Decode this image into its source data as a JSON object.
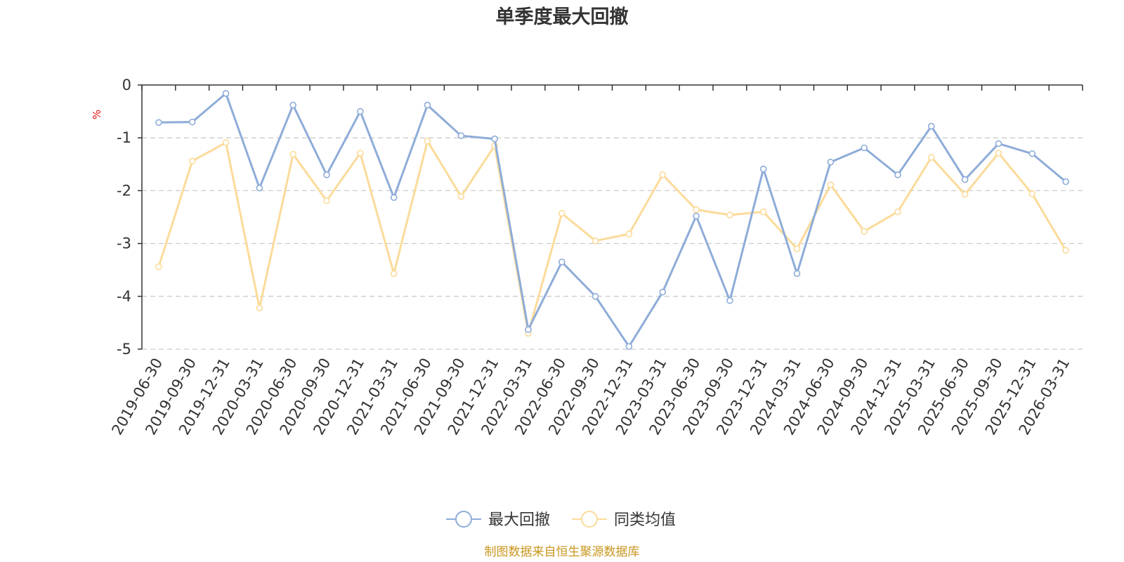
{
  "chart_data": {
    "type": "line",
    "title": "单季度最大回撤",
    "unit": "%",
    "ylim": [
      -5,
      0
    ],
    "yticks": [
      0,
      -1,
      -2,
      -3,
      -4,
      -5
    ],
    "grid": true,
    "legend_position": "bottom-center",
    "categories": [
      "2019-06-30",
      "2019-09-30",
      "2019-12-31",
      "2020-03-31",
      "2020-06-30",
      "2020-09-30",
      "2020-12-31",
      "2021-03-31",
      "2021-06-30",
      "2021-09-30",
      "2021-12-31",
      "2022-03-31",
      "2022-06-30",
      "2022-09-30",
      "2022-12-31",
      "2023-03-31",
      "2023-06-30",
      "2023-09-30",
      "2023-12-31",
      "2024-03-31",
      "2024-06-30",
      "2024-09-30",
      "2024-12-31",
      "2025-03-31",
      "2025-06-30",
      "2025-09-30",
      "2025-12-31",
      "2026-03-31"
    ],
    "series": [
      {
        "name": "最大回撤",
        "color": "#8eacd8",
        "values": [
          -0.71,
          -0.7,
          -0.16,
          -1.95,
          -0.38,
          -1.7,
          -0.5,
          -2.13,
          -0.38,
          -0.96,
          -1.02,
          -4.63,
          -3.35,
          -4.0,
          -4.95,
          -3.92,
          -2.48,
          -4.08,
          -1.59,
          -3.57,
          -1.46,
          -1.19,
          -1.7,
          -0.78,
          -1.79,
          -1.11,
          -1.3,
          -1.83
        ]
      },
      {
        "name": "同类均值",
        "color": "#fbdb9a",
        "values": [
          -3.44,
          -1.44,
          -1.09,
          -4.22,
          -1.31,
          -2.19,
          -1.29,
          -3.57,
          -1.06,
          -2.11,
          -1.15,
          -4.7,
          -2.43,
          -2.95,
          -2.82,
          -1.7,
          -2.36,
          -2.46,
          -2.4,
          -3.1,
          -1.89,
          -2.77,
          -2.4,
          -1.37,
          -2.07,
          -1.29,
          -2.06,
          -3.13
        ]
      }
    ]
  },
  "footer": {
    "source_text": "制图数据来自恒生聚源数据库",
    "source_color": "#c8961e"
  },
  "colors": {
    "unit_label": "#e01010"
  }
}
